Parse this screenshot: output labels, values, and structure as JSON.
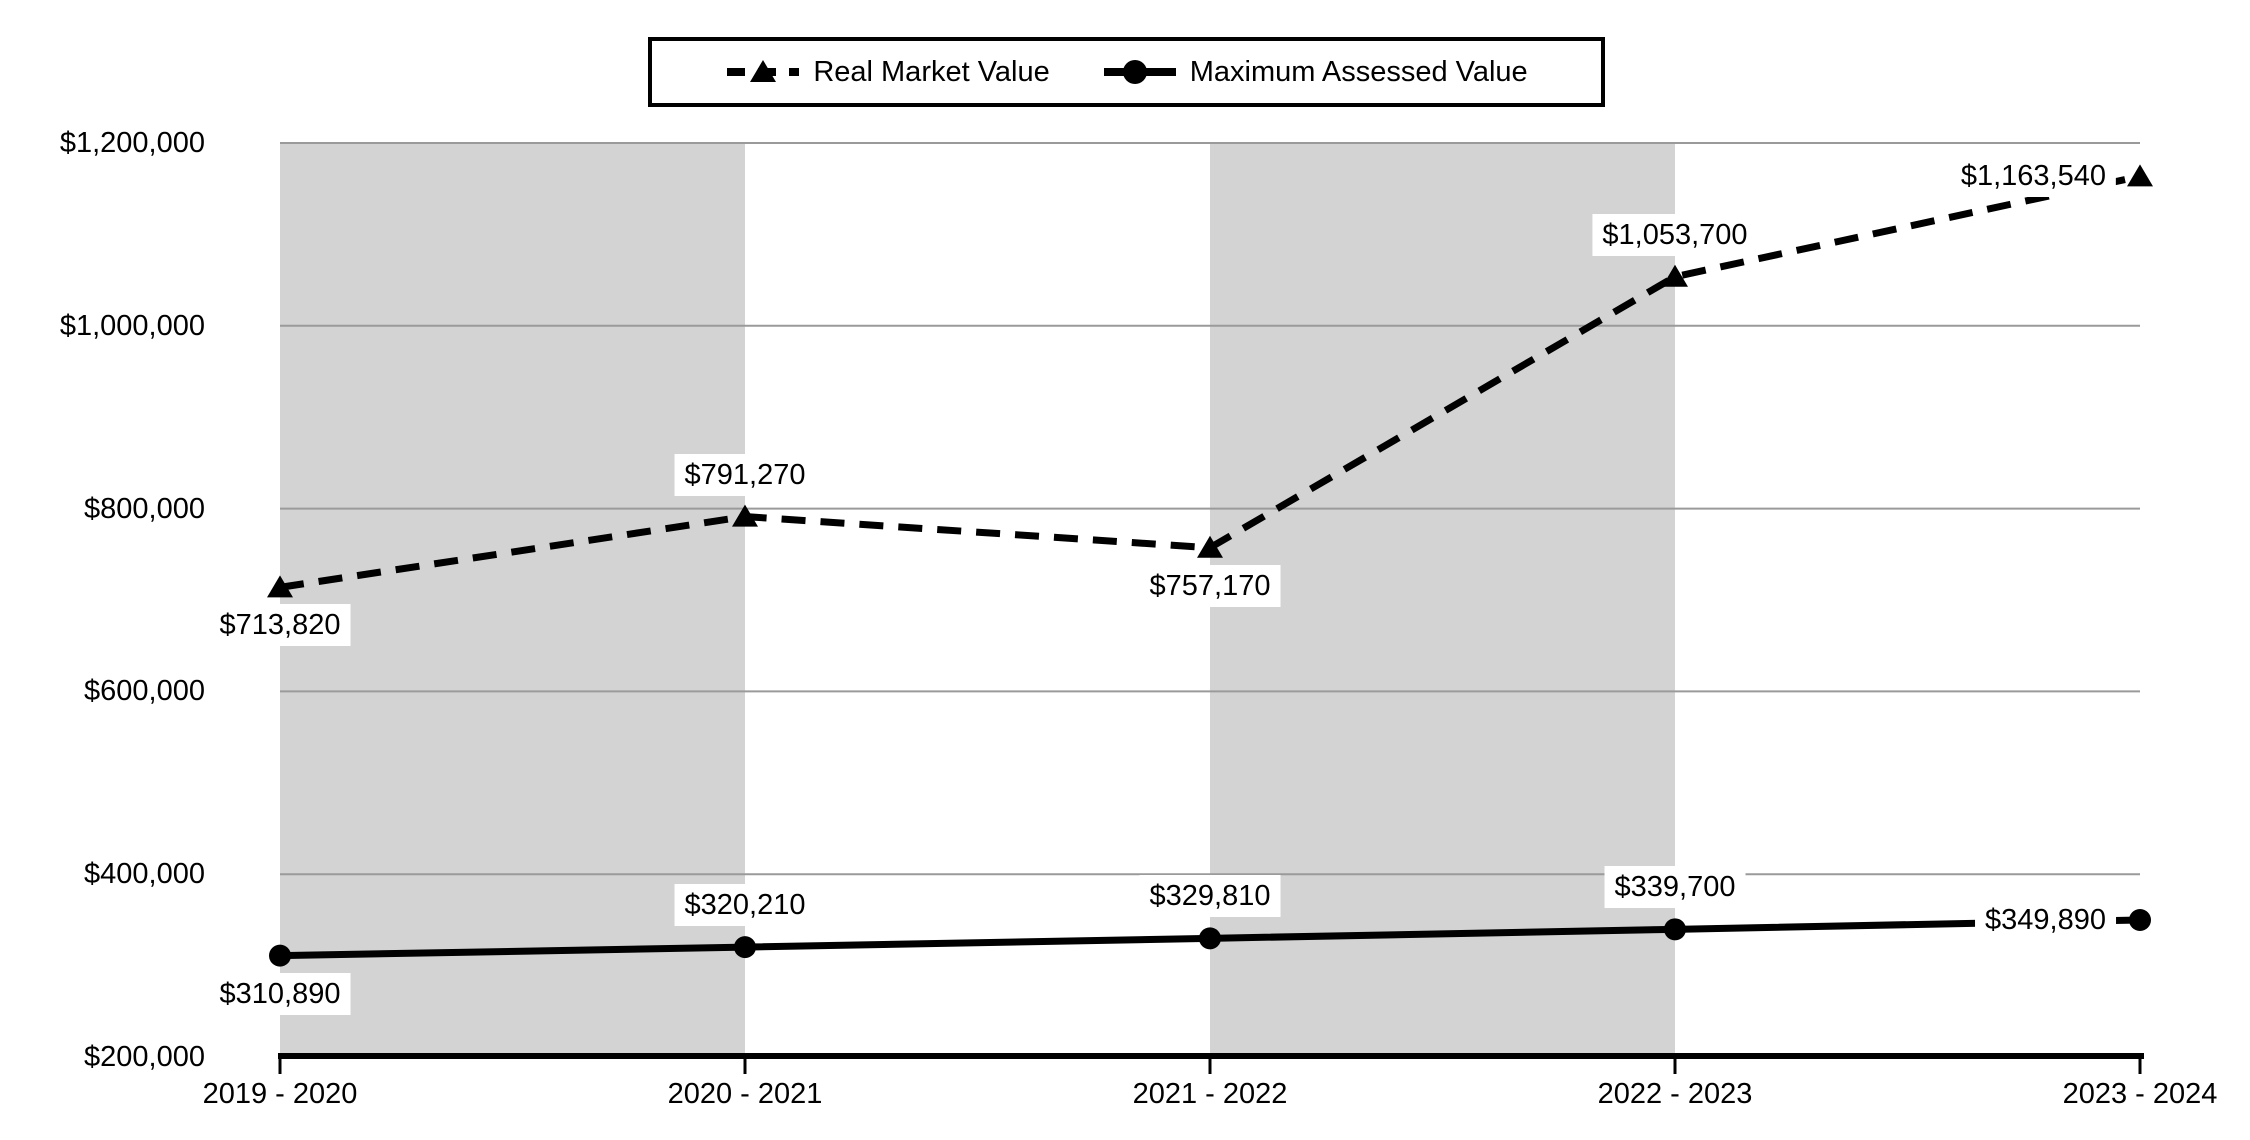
{
  "chart_data": {
    "type": "line",
    "title": "",
    "xlabel": "",
    "ylabel": "",
    "categories": [
      "2019 - 2020",
      "2020 - 2021",
      "2021 - 2022",
      "2022 - 2023",
      "2023 - 2024"
    ],
    "series": [
      {
        "name": "Real Market Value",
        "values": [
          713820,
          791270,
          757170,
          1053700,
          1163540
        ],
        "labels": [
          "$713,820",
          "$791,270",
          "$757,170",
          "$1,053,700",
          "$1,163,540"
        ],
        "label_positions": [
          "below",
          "above",
          "below",
          "above",
          "left"
        ],
        "line_style": "dashed",
        "marker": "triangle",
        "color": "#000000"
      },
      {
        "name": "Maximum Assessed Value",
        "values": [
          310890,
          320210,
          329810,
          339700,
          349890
        ],
        "labels": [
          "$310,890",
          "$320,210",
          "$329,810",
          "$339,700",
          "$349,890"
        ],
        "label_positions": [
          "below",
          "above",
          "above",
          "above",
          "left"
        ],
        "line_style": "solid",
        "marker": "circle",
        "color": "#000000"
      }
    ],
    "y_ticks": [
      {
        "value": 1200000,
        "label": "$1,200,000"
      },
      {
        "value": 1000000,
        "label": "$1,000,000"
      },
      {
        "value": 800000,
        "label": "$800,000"
      },
      {
        "value": 600000,
        "label": "$600,000"
      },
      {
        "value": 400000,
        "label": "$400,000"
      },
      {
        "value": 200000,
        "label": "$200,000"
      }
    ],
    "ylim": [
      200000,
      1200000
    ],
    "grid": true,
    "legend_position": "top",
    "shaded_band_pairs": [
      [
        0,
        1
      ],
      [
        2,
        3
      ]
    ],
    "colors": {
      "band": "#d3d3d3",
      "gridline": "#9a9a9a",
      "axis": "#000000",
      "background": "#ffffff",
      "text": "#000000"
    }
  }
}
